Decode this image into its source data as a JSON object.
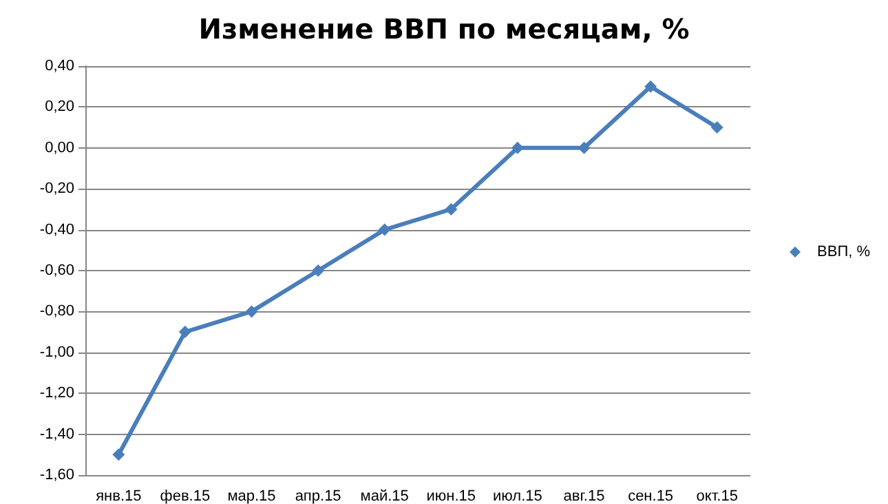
{
  "chart_data": {
    "type": "line",
    "title": "Изменение ВВП по месяцам, %",
    "categories": [
      "янв.15",
      "фев.15",
      "мар.15",
      "апр.15",
      "май.15",
      "июн.15",
      "июл.15",
      "авг.15",
      "сен.15",
      "окт.15"
    ],
    "series": [
      {
        "name": "ВВП, %",
        "color": "#4a7ebb",
        "values": [
          -1.5,
          -0.9,
          -0.8,
          -0.6,
          -0.4,
          -0.3,
          0,
          0,
          0.3,
          0.1
        ]
      }
    ],
    "ylim": [
      -1.6,
      0.4
    ],
    "yticks": [
      {
        "value": -1.6,
        "label": "-1,60"
      },
      {
        "value": -1.4,
        "label": "-1,40"
      },
      {
        "value": -1.2,
        "label": "-1,20"
      },
      {
        "value": -1.0,
        "label": "-1,00"
      },
      {
        "value": -0.8,
        "label": "-0,80"
      },
      {
        "value": -0.6,
        "label": "-0,60"
      },
      {
        "value": -0.4,
        "label": "-0,40"
      },
      {
        "value": -0.2,
        "label": "-0,20"
      },
      {
        "value": 0,
        "label": "0,00"
      },
      {
        "value": 0.2,
        "label": "0,20"
      },
      {
        "value": 0.4,
        "label": "0,40"
      }
    ],
    "grid": "y",
    "legend": "right",
    "marker": "diamond",
    "line_style": "solid"
  }
}
